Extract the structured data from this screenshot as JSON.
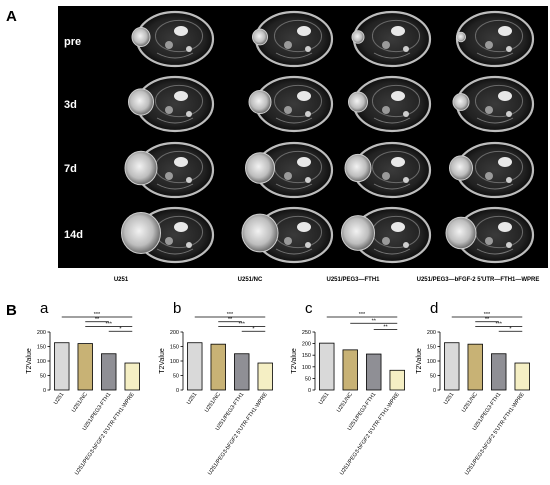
{
  "panel_a_letter": "A",
  "panel_b_letter": "B",
  "mri": {
    "rows": [
      "pre",
      "3d",
      "7d",
      "14d"
    ],
    "columns": [
      "U251",
      "U251/NC",
      "U251/PEG3—FTH1",
      "U251/PEG3—bFGF-2 5'UTR—FTH1—WPRE"
    ]
  },
  "colors": {
    "bar1": "#d9d9d9",
    "bar2": "#c8b275",
    "bar3": "#8f8f95",
    "bar4": "#f5efc4"
  },
  "chart_data": [
    {
      "type": "bar",
      "letter": "a",
      "categories": [
        "U251",
        "U251/NC",
        "U251/PEG3-FTH1",
        "U251/PEG3-bFGF2 5'UTR-FTH1-WPRE"
      ],
      "values": [
        163,
        160,
        125,
        93
      ],
      "ylabel": "T2Value",
      "ylim": [
        0,
        200
      ],
      "yticks": [
        0,
        50,
        100,
        150,
        200
      ],
      "significance": [
        {
          "from": 0,
          "to": 3,
          "label": "***"
        },
        {
          "from": 1,
          "to": 2,
          "label": "**"
        },
        {
          "from": 1,
          "to": 3,
          "label": "***"
        },
        {
          "from": 2,
          "to": 3,
          "label": "*"
        }
      ]
    },
    {
      "type": "bar",
      "letter": "b",
      "categories": [
        "U251",
        "U251/NC",
        "U251/PEG3-FTH1",
        "U251/PEG3-bFGF2 5'UTR-FTH1-WPRE"
      ],
      "values": [
        163,
        158,
        125,
        93
      ],
      "ylabel": "T2Value",
      "ylim": [
        0,
        200
      ],
      "yticks": [
        0,
        50,
        100,
        150,
        200
      ],
      "significance": [
        {
          "from": 0,
          "to": 3,
          "label": "***"
        },
        {
          "from": 1,
          "to": 2,
          "label": "**"
        },
        {
          "from": 1,
          "to": 3,
          "label": "***"
        },
        {
          "from": 2,
          "to": 3,
          "label": "*"
        }
      ]
    },
    {
      "type": "bar",
      "letter": "c",
      "categories": [
        "U251",
        "U251/NC",
        "U251/PEG3-FTH1",
        "U251/PEG3-bFGF2 5'UTR-FTH1-WPRE"
      ],
      "values": [
        202,
        173,
        155,
        85
      ],
      "ylabel": "T2Value",
      "ylim": [
        0,
        250
      ],
      "yticks": [
        0,
        50,
        100,
        150,
        200,
        250
      ],
      "significance": [
        {
          "from": 0,
          "to": 3,
          "label": "***"
        },
        {
          "from": 1,
          "to": 3,
          "label": "**"
        },
        {
          "from": 2,
          "to": 3,
          "label": "**"
        }
      ]
    },
    {
      "type": "bar",
      "letter": "d",
      "categories": [
        "U251",
        "U251/NC",
        "U251/PEG3-FTH1",
        "U251/PEG3-bFGF2 5'UTR-FTH1-WPRE"
      ],
      "values": [
        163,
        158,
        125,
        93
      ],
      "ylabel": "T2Value",
      "ylim": [
        0,
        200
      ],
      "yticks": [
        0,
        50,
        100,
        150,
        200
      ],
      "significance": [
        {
          "from": 0,
          "to": 3,
          "label": "***"
        },
        {
          "from": 1,
          "to": 2,
          "label": "**"
        },
        {
          "from": 1,
          "to": 3,
          "label": "***"
        },
        {
          "from": 2,
          "to": 3,
          "label": "*"
        }
      ]
    }
  ]
}
